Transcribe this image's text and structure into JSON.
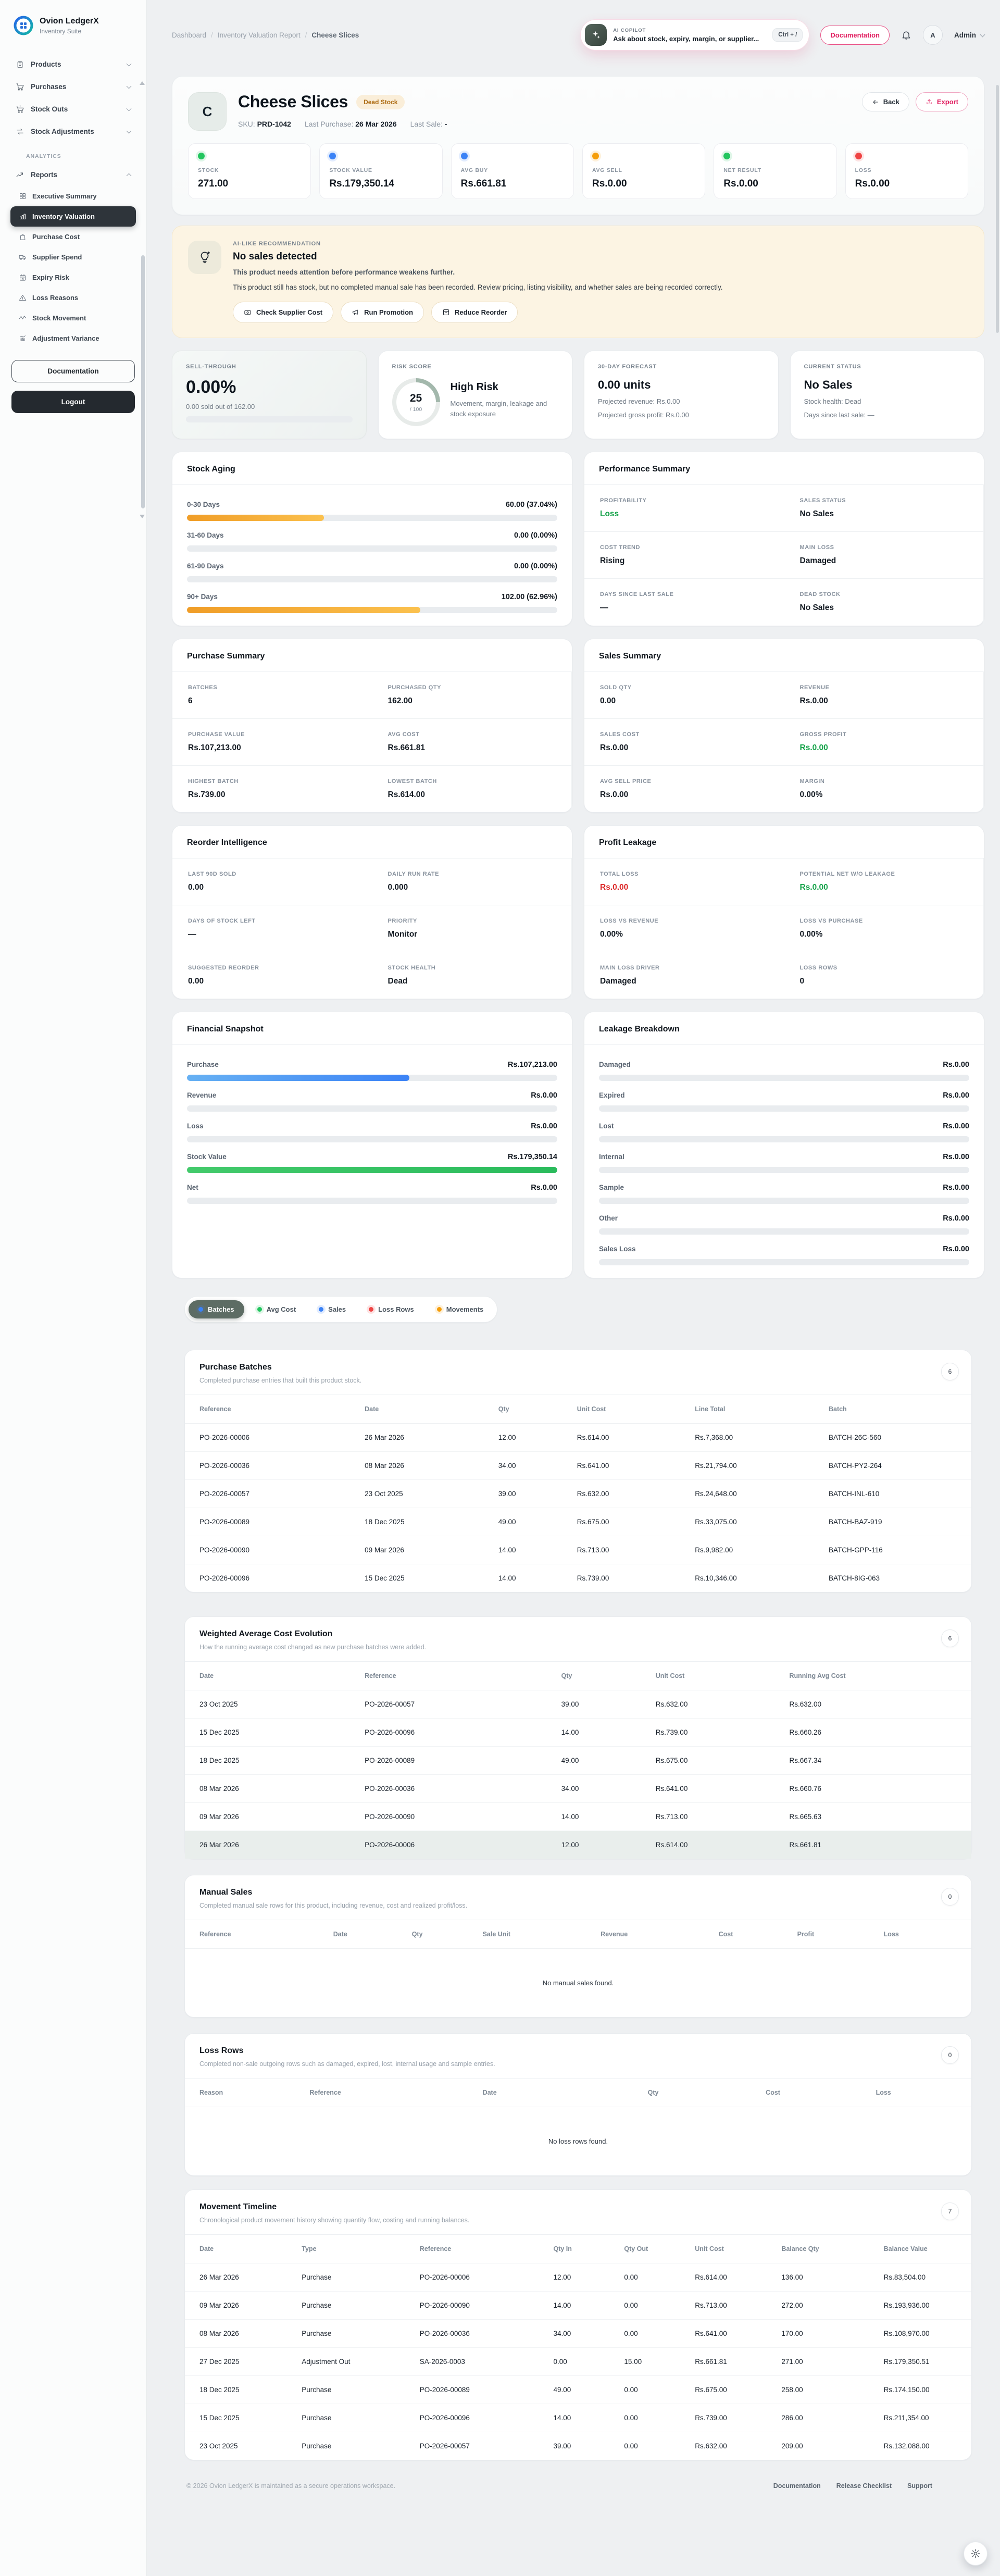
{
  "brand": {
    "name": "Ovion LedgerX",
    "tagline": "Inventory Suite"
  },
  "sidebar": {
    "top": [
      {
        "label": "Products"
      },
      {
        "label": "Purchases"
      },
      {
        "label": "Stock Outs"
      },
      {
        "label": "Stock Adjustments"
      }
    ],
    "analytics_label": "ANALYTICS",
    "reports_label": "Reports",
    "report_items": [
      "Executive Summary",
      "Inventory Valuation",
      "Purchase Cost",
      "Supplier Spend",
      "Expiry Risk",
      "Loss Reasons",
      "Stock Movement",
      "Adjustment Variance"
    ],
    "documentation_label": "Documentation",
    "logout_label": "Logout"
  },
  "header": {
    "breadcrumb": [
      "Dashboard",
      "Inventory Valuation Report",
      "Cheese Slices"
    ],
    "copilot": {
      "kicker": "AI COPILOT",
      "query": "Ask about stock, expiry, margin, or supplier...",
      "shortcut": "Ctrl + /"
    },
    "documentation_label": "Documentation",
    "user": {
      "initial": "A",
      "name": "Admin"
    }
  },
  "product": {
    "initial": "C",
    "name": "Cheese Slices",
    "badge": "Dead Stock",
    "sku_label": "SKU:",
    "sku": "PRD-1042",
    "last_purchase_label": "Last Purchase:",
    "last_purchase": "26 Mar 2026",
    "last_sale_label": "Last Sale:",
    "last_sale": "-",
    "back_label": "Back",
    "export_label": "Export",
    "stats": [
      {
        "label": "STOCK",
        "value": "271.00",
        "dot": "#22c55e"
      },
      {
        "label": "STOCK VALUE",
        "value": "Rs.179,350.14",
        "dot": "#3b82f6"
      },
      {
        "label": "AVG BUY",
        "value": "Rs.661.81",
        "dot": "#3b82f6"
      },
      {
        "label": "AVG SELL",
        "value": "Rs.0.00",
        "dot": "#f59e0b"
      },
      {
        "label": "NET RESULT",
        "value": "Rs.0.00",
        "dot": "#22c55e"
      },
      {
        "label": "LOSS",
        "value": "Rs.0.00",
        "dot": "#ef4444"
      }
    ]
  },
  "recommendation": {
    "kicker": "AI-LIKE RECOMMENDATION",
    "title": "No sales detected",
    "line1": "This product needs attention before performance weakens further.",
    "line2": "This product still has stock, but no completed manual sale has been recorded. Review pricing, listing visibility, and whether sales are being recorded correctly.",
    "actions": [
      "Check Supplier Cost",
      "Run Promotion",
      "Reduce Reorder"
    ]
  },
  "kpis": {
    "sell_through": {
      "label": "SELL-THROUGH",
      "value": "0.00%",
      "caption": "0.00 sold out of 162.00",
      "pct": 0
    },
    "risk": {
      "label": "RISK SCORE",
      "score": "25",
      "denom": "/ 100",
      "level": "High Risk",
      "caption": "Movement, margin, leakage and stock exposure"
    },
    "forecast": {
      "label": "30-DAY FORECAST",
      "value": "0.00 units",
      "line1": "Projected revenue: Rs.0.00",
      "line2": "Projected gross profit: Rs.0.00"
    },
    "status": {
      "label": "CURRENT STATUS",
      "value": "No Sales",
      "line1": "Stock health: Dead",
      "line2": "Days since last sale: —"
    }
  },
  "stock_aging": {
    "title": "Stock Aging",
    "rows": [
      {
        "label": "0-30 Days",
        "value": "60.00 (37.04%)",
        "pct": 37,
        "fill": "orange"
      },
      {
        "label": "31-60 Days",
        "value": "0.00 (0.00%)",
        "pct": 0,
        "fill": "orange"
      },
      {
        "label": "61-90 Days",
        "value": "0.00 (0.00%)",
        "pct": 0,
        "fill": "orange"
      },
      {
        "label": "90+ Days",
        "value": "102.00 (62.96%)",
        "pct": 63,
        "fill": "orange"
      }
    ]
  },
  "performance_summary": {
    "title": "Performance Summary",
    "items": [
      {
        "label": "PROFITABILITY",
        "value": "Loss",
        "cls": "green"
      },
      {
        "label": "SALES STATUS",
        "value": "No Sales"
      },
      {
        "label": "COST TREND",
        "value": "Rising"
      },
      {
        "label": "MAIN LOSS",
        "value": "Damaged"
      },
      {
        "label": "DAYS SINCE LAST SALE",
        "value": "—"
      },
      {
        "label": "DEAD STOCK",
        "value": "No Sales"
      }
    ]
  },
  "purchase_summary": {
    "title": "Purchase Summary",
    "items": [
      {
        "label": "BATCHES",
        "value": "6"
      },
      {
        "label": "PURCHASED QTY",
        "value": "162.00"
      },
      {
        "label": "PURCHASE VALUE",
        "value": "Rs.107,213.00"
      },
      {
        "label": "AVG COST",
        "value": "Rs.661.81"
      },
      {
        "label": "HIGHEST BATCH",
        "value": "Rs.739.00"
      },
      {
        "label": "LOWEST BATCH",
        "value": "Rs.614.00"
      }
    ]
  },
  "sales_summary": {
    "title": "Sales Summary",
    "items": [
      {
        "label": "SOLD QTY",
        "value": "0.00"
      },
      {
        "label": "REVENUE",
        "value": "Rs.0.00"
      },
      {
        "label": "SALES COST",
        "value": "Rs.0.00"
      },
      {
        "label": "GROSS PROFIT",
        "value": "Rs.0.00",
        "cls": "green"
      },
      {
        "label": "AVG SELL PRICE",
        "value": "Rs.0.00"
      },
      {
        "label": "MARGIN",
        "value": "0.00%"
      }
    ]
  },
  "reorder_intelligence": {
    "title": "Reorder Intelligence",
    "items": [
      {
        "label": "LAST 90D SOLD",
        "value": "0.00"
      },
      {
        "label": "DAILY RUN RATE",
        "value": "0.000"
      },
      {
        "label": "DAYS OF STOCK LEFT",
        "value": "—"
      },
      {
        "label": "PRIORITY",
        "value": "Monitor"
      },
      {
        "label": "SUGGESTED REORDER",
        "value": "0.00"
      },
      {
        "label": "STOCK HEALTH",
        "value": "Dead"
      }
    ]
  },
  "profit_leakage": {
    "title": "Profit Leakage",
    "items": [
      {
        "label": "TOTAL LOSS",
        "value": "Rs.0.00",
        "cls": "red"
      },
      {
        "label": "POTENTIAL NET W/O LEAKAGE",
        "value": "Rs.0.00",
        "cls": "green"
      },
      {
        "label": "LOSS VS REVENUE",
        "value": "0.00%"
      },
      {
        "label": "LOSS VS PURCHASE",
        "value": "0.00%"
      },
      {
        "label": "MAIN LOSS DRIVER",
        "value": "Damaged"
      },
      {
        "label": "LOSS ROWS",
        "value": "0"
      }
    ]
  },
  "financial_snapshot": {
    "title": "Financial Snapshot",
    "rows": [
      {
        "label": "Purchase",
        "value": "Rs.107,213.00",
        "pct": 60,
        "fill": "blue"
      },
      {
        "label": "Revenue",
        "value": "Rs.0.00",
        "pct": 0,
        "fill": "blue"
      },
      {
        "label": "Loss",
        "value": "Rs.0.00",
        "pct": 0,
        "fill": "red"
      },
      {
        "label": "Stock Value",
        "value": "Rs.179,350.14",
        "pct": 100,
        "fill": "green"
      },
      {
        "label": "Net",
        "value": "Rs.0.00",
        "pct": 0,
        "fill": "green"
      }
    ]
  },
  "leakage_breakdown": {
    "title": "Leakage Breakdown",
    "rows": [
      {
        "label": "Damaged",
        "value": "Rs.0.00",
        "pct": 0,
        "fill": "red"
      },
      {
        "label": "Expired",
        "value": "Rs.0.00",
        "pct": 0,
        "fill": "red"
      },
      {
        "label": "Lost",
        "value": "Rs.0.00",
        "pct": 0,
        "fill": "red"
      },
      {
        "label": "Internal",
        "value": "Rs.0.00",
        "pct": 0,
        "fill": "red"
      },
      {
        "label": "Sample",
        "value": "Rs.0.00",
        "pct": 0,
        "fill": "red"
      },
      {
        "label": "Other",
        "value": "Rs.0.00",
        "pct": 0,
        "fill": "red"
      },
      {
        "label": "Sales Loss",
        "value": "Rs.0.00",
        "pct": 0,
        "fill": "red"
      }
    ]
  },
  "tabs": [
    {
      "label": "Batches",
      "dot": "#3b82f6",
      "cls": "active"
    },
    {
      "label": "Avg Cost",
      "dot": "#22c55e",
      "cls": ""
    },
    {
      "label": "Sales",
      "dot": "#3b82f6",
      "cls": ""
    },
    {
      "label": "Loss Rows",
      "dot": "#ef4444",
      "cls": ""
    },
    {
      "label": "Movements",
      "dot": "#f59e0b",
      "cls": ""
    }
  ],
  "purchase_batches": {
    "title": "Purchase Batches",
    "count": "6",
    "subtitle": "Completed purchase entries that built this product stock.",
    "headers": [
      "Reference",
      "Date",
      "Qty",
      "Unit Cost",
      "Line Total",
      "Batch"
    ],
    "widths": [
      21,
      17,
      10,
      15,
      17,
      20
    ],
    "rows": [
      [
        "PO-2026-00006",
        "26 Mar 2026",
        "12.00",
        "Rs.614.00",
        "Rs.7,368.00",
        "BATCH-26C-560"
      ],
      [
        "PO-2026-00036",
        "08 Mar 2026",
        "34.00",
        "Rs.641.00",
        "Rs.21,794.00",
        "BATCH-PY2-264"
      ],
      [
        "PO-2026-00057",
        "23 Oct 2025",
        "39.00",
        "Rs.632.00",
        "Rs.24,648.00",
        "BATCH-INL-610"
      ],
      [
        "PO-2026-00089",
        "18 Dec 2025",
        "49.00",
        "Rs.675.00",
        "Rs.33,075.00",
        "BATCH-BAZ-919"
      ],
      [
        "PO-2026-00090",
        "09 Mar 2026",
        "14.00",
        "Rs.713.00",
        "Rs.9,982.00",
        "BATCH-GPP-116"
      ],
      [
        "PO-2026-00096",
        "15 Dec 2025",
        "14.00",
        "Rs.739.00",
        "Rs.10,346.00",
        "BATCH-8IG-063"
      ]
    ]
  },
  "avg_cost": {
    "title": "Weighted Average Cost Evolution",
    "count": "6",
    "subtitle": "How the running average cost changed as new purchase batches were added.",
    "headers": [
      "Date",
      "Reference",
      "Qty",
      "Unit Cost",
      "Running Avg Cost"
    ],
    "widths": [
      21,
      25,
      12,
      17,
      25
    ],
    "highlight": 5,
    "rows": [
      [
        "23 Oct 2025",
        "PO-2026-00057",
        "39.00",
        "Rs.632.00",
        "Rs.632.00"
      ],
      [
        "15 Dec 2025",
        "PO-2026-00096",
        "14.00",
        "Rs.739.00",
        "Rs.660.26"
      ],
      [
        "18 Dec 2025",
        "PO-2026-00089",
        "49.00",
        "Rs.675.00",
        "Rs.667.34"
      ],
      [
        "08 Mar 2026",
        "PO-2026-00036",
        "34.00",
        "Rs.641.00",
        "Rs.660.76"
      ],
      [
        "09 Mar 2026",
        "PO-2026-00090",
        "14.00",
        "Rs.713.00",
        "Rs.665.63"
      ],
      [
        "26 Mar 2026",
        "PO-2026-00006",
        "12.00",
        "Rs.614.00",
        "Rs.661.81"
      ]
    ]
  },
  "manual_sales": {
    "title": "Manual Sales",
    "count": "0",
    "subtitle": "Completed manual sale rows for this product, including revenue, cost and realized profit/loss.",
    "headers": [
      "Reference",
      "Date",
      "Qty",
      "Sale Unit",
      "Revenue",
      "Cost",
      "Profit",
      "Loss"
    ],
    "widths": [
      17,
      10,
      9,
      15,
      15,
      10,
      11,
      13
    ],
    "rows": [],
    "empty": "No manual sales found."
  },
  "loss_rows": {
    "title": "Loss Rows",
    "count": "0",
    "subtitle": "Completed non-sale outgoing rows such as damaged, expired, lost, internal usage and sample entries.",
    "headers": [
      "Reason",
      "Reference",
      "Date",
      "Qty",
      "Cost",
      "Loss"
    ],
    "widths": [
      14,
      22,
      21,
      15,
      14,
      14
    ],
    "rows": [],
    "empty": "No loss rows found."
  },
  "movement_timeline": {
    "title": "Movement Timeline",
    "count": "7",
    "subtitle": "Chronological product movement history showing quantity flow, costing and running balances.",
    "headers": [
      "Date",
      "Type",
      "Reference",
      "Qty In",
      "Qty Out",
      "Unit Cost",
      "Balance Qty",
      "Balance Value"
    ],
    "widths": [
      13,
      15,
      17,
      9,
      9,
      11,
      13,
      13
    ],
    "rows": [
      [
        "26 Mar 2026",
        "Purchase",
        "PO-2026-00006",
        "12.00",
        "0.00",
        "Rs.614.00",
        "136.00",
        "Rs.83,504.00"
      ],
      [
        "09 Mar 2026",
        "Purchase",
        "PO-2026-00090",
        "14.00",
        "0.00",
        "Rs.713.00",
        "272.00",
        "Rs.193,936.00"
      ],
      [
        "08 Mar 2026",
        "Purchase",
        "PO-2026-00036",
        "34.00",
        "0.00",
        "Rs.641.00",
        "170.00",
        "Rs.108,970.00"
      ],
      [
        "27 Dec 2025",
        "Adjustment Out",
        "SA-2026-0003",
        "0.00",
        "15.00",
        "Rs.661.81",
        "271.00",
        "Rs.179,350.51"
      ],
      [
        "18 Dec 2025",
        "Purchase",
        "PO-2026-00089",
        "49.00",
        "0.00",
        "Rs.675.00",
        "258.00",
        "Rs.174,150.00"
      ],
      [
        "15 Dec 2025",
        "Purchase",
        "PO-2026-00096",
        "14.00",
        "0.00",
        "Rs.739.00",
        "286.00",
        "Rs.211,354.00"
      ],
      [
        "23 Oct 2025",
        "Purchase",
        "PO-2026-00057",
        "39.00",
        "0.00",
        "Rs.632.00",
        "209.00",
        "Rs.132,088.00"
      ]
    ]
  },
  "footer": {
    "copyright": "© 2026 Ovion LedgerX is maintained as a secure operations workspace.",
    "links": [
      "Documentation",
      "Release Checklist",
      "Support"
    ]
  }
}
